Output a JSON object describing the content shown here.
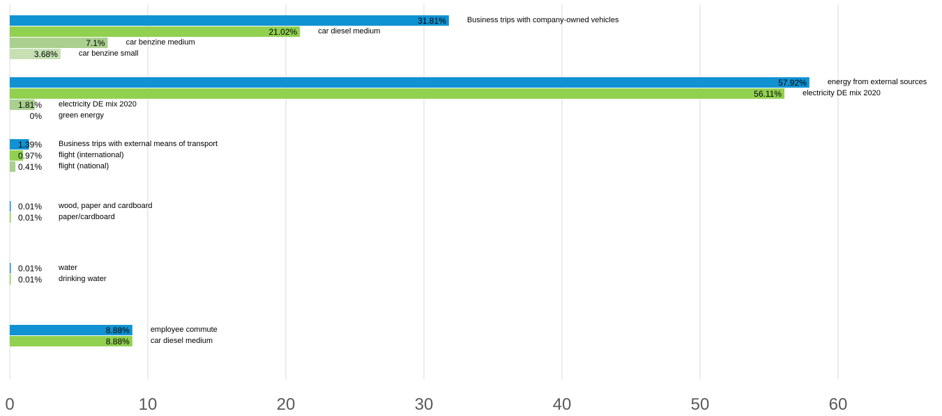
{
  "chart_data": {
    "type": "bar",
    "orientation": "horizontal",
    "xlim": [
      0,
      60
    ],
    "xticks": [
      0,
      10,
      20,
      30,
      40,
      50,
      60
    ],
    "grid": "vertical",
    "colors": {
      "category": "#1192d2",
      "level1": "#92d050",
      "level2": "#a9d08e",
      "level3": "#c6e0b4"
    },
    "groups": [
      {
        "bars": [
          {
            "label": "Business trips with company-owned vehicles",
            "value": 31.81,
            "value_label": "31.81%",
            "level": "category"
          },
          {
            "label": "car diesel medium",
            "value": 21.02,
            "value_label": "21.02%",
            "level": "level1"
          },
          {
            "label": "car benzine medium",
            "value": 7.1,
            "value_label": "7.1%",
            "level": "level2"
          },
          {
            "label": "car benzine small",
            "value": 3.68,
            "value_label": "3.68%",
            "level": "level3"
          }
        ]
      },
      {
        "bars": [
          {
            "label": "energy from external sources",
            "value": 57.92,
            "value_label": "57.92%",
            "level": "category"
          },
          {
            "label": "electricity DE mix 2020",
            "value": 56.11,
            "value_label": "56.11%",
            "level": "level1"
          },
          {
            "label": "electricity DE mix 2020",
            "value": 1.81,
            "value_label": "1.81%",
            "level": "level2"
          },
          {
            "label": "green energy",
            "value": 0,
            "value_label": "0%",
            "level": "level3"
          }
        ]
      },
      {
        "bars": [
          {
            "label": "Business trips with external means of transport",
            "value": 1.39,
            "value_label": "1.39%",
            "level": "category"
          },
          {
            "label": "flight (international)",
            "value": 0.97,
            "value_label": "0.97%",
            "level": "level1"
          },
          {
            "label": "flight (national)",
            "value": 0.41,
            "value_label": "0.41%",
            "level": "level2"
          }
        ]
      },
      {
        "bars": [
          {
            "label": "wood, paper and cardboard",
            "value": 0.01,
            "value_label": "0.01%",
            "level": "category"
          },
          {
            "label": "paper/cardboard",
            "value": 0.01,
            "value_label": "0.01%",
            "level": "level1"
          }
        ]
      },
      {
        "bars": [
          {
            "label": "water",
            "value": 0.01,
            "value_label": "0.01%",
            "level": "category"
          },
          {
            "label": "drinking water",
            "value": 0.01,
            "value_label": "0.01%",
            "level": "level1"
          }
        ]
      },
      {
        "bars": [
          {
            "label": "employee commute",
            "value": 8.88,
            "value_label": "8.88%",
            "level": "category"
          },
          {
            "label": "car diesel medium",
            "value": 8.88,
            "value_label": "8.88%",
            "level": "level1"
          }
        ]
      }
    ]
  }
}
